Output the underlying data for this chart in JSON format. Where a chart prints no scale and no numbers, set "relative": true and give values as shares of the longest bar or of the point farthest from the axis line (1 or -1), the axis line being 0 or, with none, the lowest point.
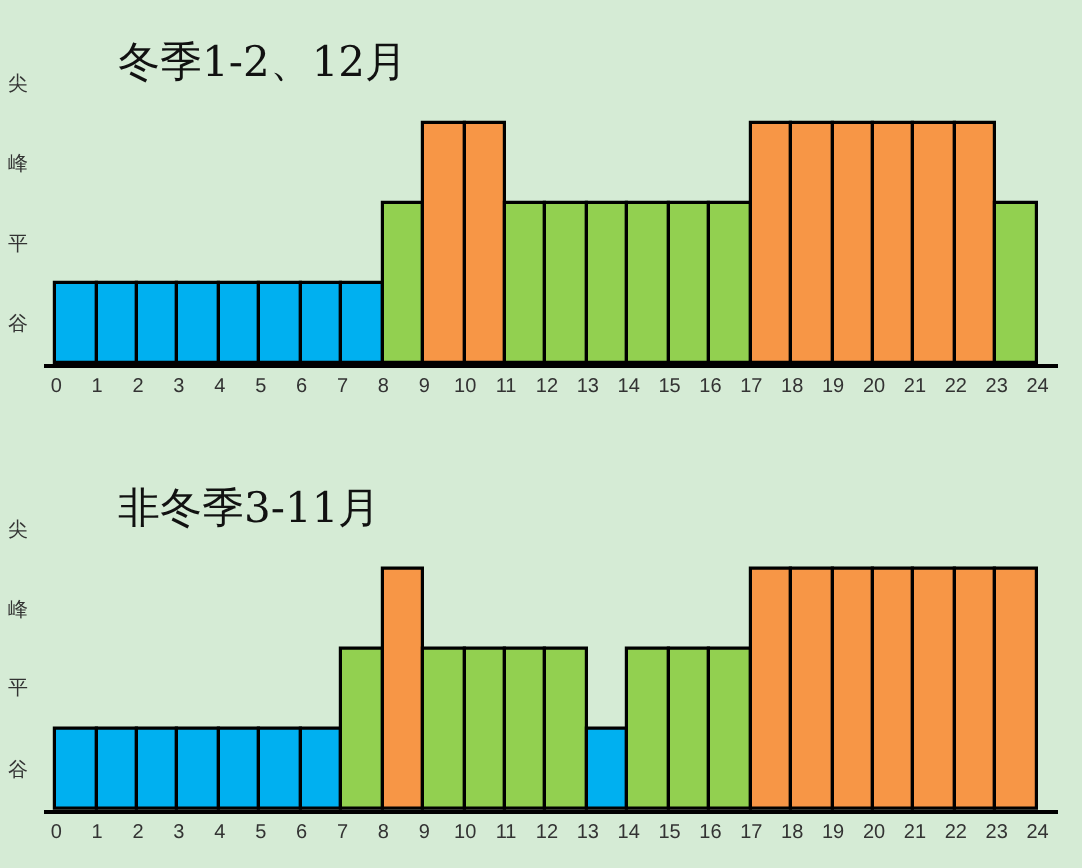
{
  "chart_data": [
    {
      "type": "bar",
      "title": "冬季1-2、12月",
      "relative": true,
      "annotations": [
        "尖",
        "峰",
        "平",
        "谷"
      ],
      "x": [
        0.5,
        1.5,
        2.5,
        3.5,
        4.5,
        5.5,
        6.5,
        7.5,
        8.5,
        9.5,
        10.5,
        11.5,
        12.5,
        13.5,
        14.5,
        15.5,
        16.5,
        17.5,
        18.5,
        19.5,
        20.5,
        21.5,
        22.5,
        23.5
      ],
      "values": [
        0.333,
        0.333,
        0.333,
        0.333,
        0.333,
        0.333,
        0.333,
        0.333,
        0.667,
        1,
        1,
        0.667,
        0.667,
        0.667,
        0.667,
        0.667,
        0.667,
        1,
        1,
        1,
        1,
        1,
        1,
        0.667
      ],
      "colors": [
        "#00b0f0",
        "#00b0f0",
        "#00b0f0",
        "#00b0f0",
        "#00b0f0",
        "#00b0f0",
        "#00b0f0",
        "#00b0f0",
        "#92d050",
        "#f79646",
        "#f79646",
        "#92d050",
        "#92d050",
        "#92d050",
        "#92d050",
        "#92d050",
        "#92d050",
        "#f79646",
        "#f79646",
        "#f79646",
        "#f79646",
        "#f79646",
        "#f79646",
        "#92d050"
      ],
      "xlim": [
        -0.3,
        24.5
      ],
      "xticks": [
        0,
        1,
        2,
        3,
        4,
        5,
        6,
        7,
        8,
        9,
        10,
        11,
        12,
        13,
        14,
        15,
        16,
        17,
        18,
        19,
        20,
        21,
        22,
        23,
        24
      ]
    },
    {
      "type": "bar",
      "title": "非冬季3-11月",
      "relative": true,
      "annotations": [
        "尖",
        "峰",
        "平",
        "谷"
      ],
      "x": [
        0.5,
        1.5,
        2.5,
        3.5,
        4.5,
        5.5,
        6.5,
        7.5,
        8.5,
        9.5,
        10.5,
        11.5,
        12.5,
        13.5,
        14.5,
        15.5,
        16.5,
        17.5,
        18.5,
        19.5,
        20.5,
        21.5,
        22.5,
        23.5
      ],
      "values": [
        0.333,
        0.333,
        0.333,
        0.333,
        0.333,
        0.333,
        0.333,
        0.667,
        1,
        0.667,
        0.667,
        0.667,
        0.667,
        0.333,
        0.667,
        0.667,
        0.667,
        1,
        1,
        1,
        1,
        1,
        1,
        1
      ],
      "colors": [
        "#00b0f0",
        "#00b0f0",
        "#00b0f0",
        "#00b0f0",
        "#00b0f0",
        "#00b0f0",
        "#00b0f0",
        "#92d050",
        "#f79646",
        "#92d050",
        "#92d050",
        "#92d050",
        "#92d050",
        "#00b0f0",
        "#92d050",
        "#92d050",
        "#92d050",
        "#f79646",
        "#f79646",
        "#f79646",
        "#f79646",
        "#f79646",
        "#f79646",
        "#f79646"
      ],
      "xlim": [
        -0.3,
        24.5
      ],
      "xticks": [
        0,
        1,
        2,
        3,
        4,
        5,
        6,
        7,
        8,
        9,
        10,
        11,
        12,
        13,
        14,
        15,
        16,
        17,
        18,
        19,
        20,
        21,
        22,
        23,
        24
      ]
    }
  ]
}
